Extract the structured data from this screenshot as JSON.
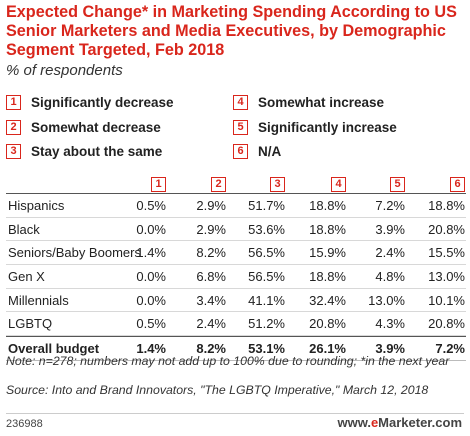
{
  "chart_data": {
    "type": "table",
    "title": "Expected Change* in Marketing Spending According to US Senior Marketers and Media Executives, by Demographic Segment Targeted, Feb 2018",
    "subtitle": "% of respondents",
    "legend": [
      {
        "key": "1",
        "label": "Significantly decrease"
      },
      {
        "key": "2",
        "label": "Somewhat decrease"
      },
      {
        "key": "3",
        "label": "Stay about the same"
      },
      {
        "key": "4",
        "label": "Somewhat increase"
      },
      {
        "key": "5",
        "label": "Significantly increase"
      },
      {
        "key": "6",
        "label": "N/A"
      }
    ],
    "columns": [
      "1",
      "2",
      "3",
      "4",
      "5",
      "6"
    ],
    "rows": [
      {
        "label": "Hispanics",
        "values": [
          "0.5%",
          "2.9%",
          "51.7%",
          "18.8%",
          "7.2%",
          "18.8%"
        ]
      },
      {
        "label": "Black",
        "values": [
          "0.0%",
          "2.9%",
          "53.6%",
          "18.8%",
          "3.9%",
          "20.8%"
        ]
      },
      {
        "label": "Seniors/Baby Boomers",
        "values": [
          "1.4%",
          "8.2%",
          "56.5%",
          "15.9%",
          "2.4%",
          "15.5%"
        ]
      },
      {
        "label": "Gen X",
        "values": [
          "0.0%",
          "6.8%",
          "56.5%",
          "18.8%",
          "4.8%",
          "13.0%"
        ]
      },
      {
        "label": "Millennials",
        "values": [
          "0.0%",
          "3.4%",
          "41.1%",
          "32.4%",
          "13.0%",
          "10.1%"
        ]
      },
      {
        "label": "LGBTQ",
        "values": [
          "0.5%",
          "2.4%",
          "51.2%",
          "20.8%",
          "4.3%",
          "20.8%"
        ]
      }
    ],
    "total": {
      "label": "Overall budget",
      "values": [
        "1.4%",
        "8.2%",
        "53.1%",
        "26.1%",
        "3.9%",
        "7.2%"
      ]
    }
  },
  "notes": {
    "note": "Note: n=278; numbers may not add up to 100% due to rounding; *in the next year",
    "source": "Source: Into and Brand Innovators, \"The LGBTQ Imperative,\" March 12, 2018"
  },
  "footer": {
    "chart_id": "236988",
    "brand_prefix": "www.",
    "brand_accent": "e",
    "brand_name": "Marketer",
    "brand_suffix": ".com"
  },
  "colors": {
    "accent": "#d9261c",
    "text": "#222222",
    "rule": "#555555"
  }
}
